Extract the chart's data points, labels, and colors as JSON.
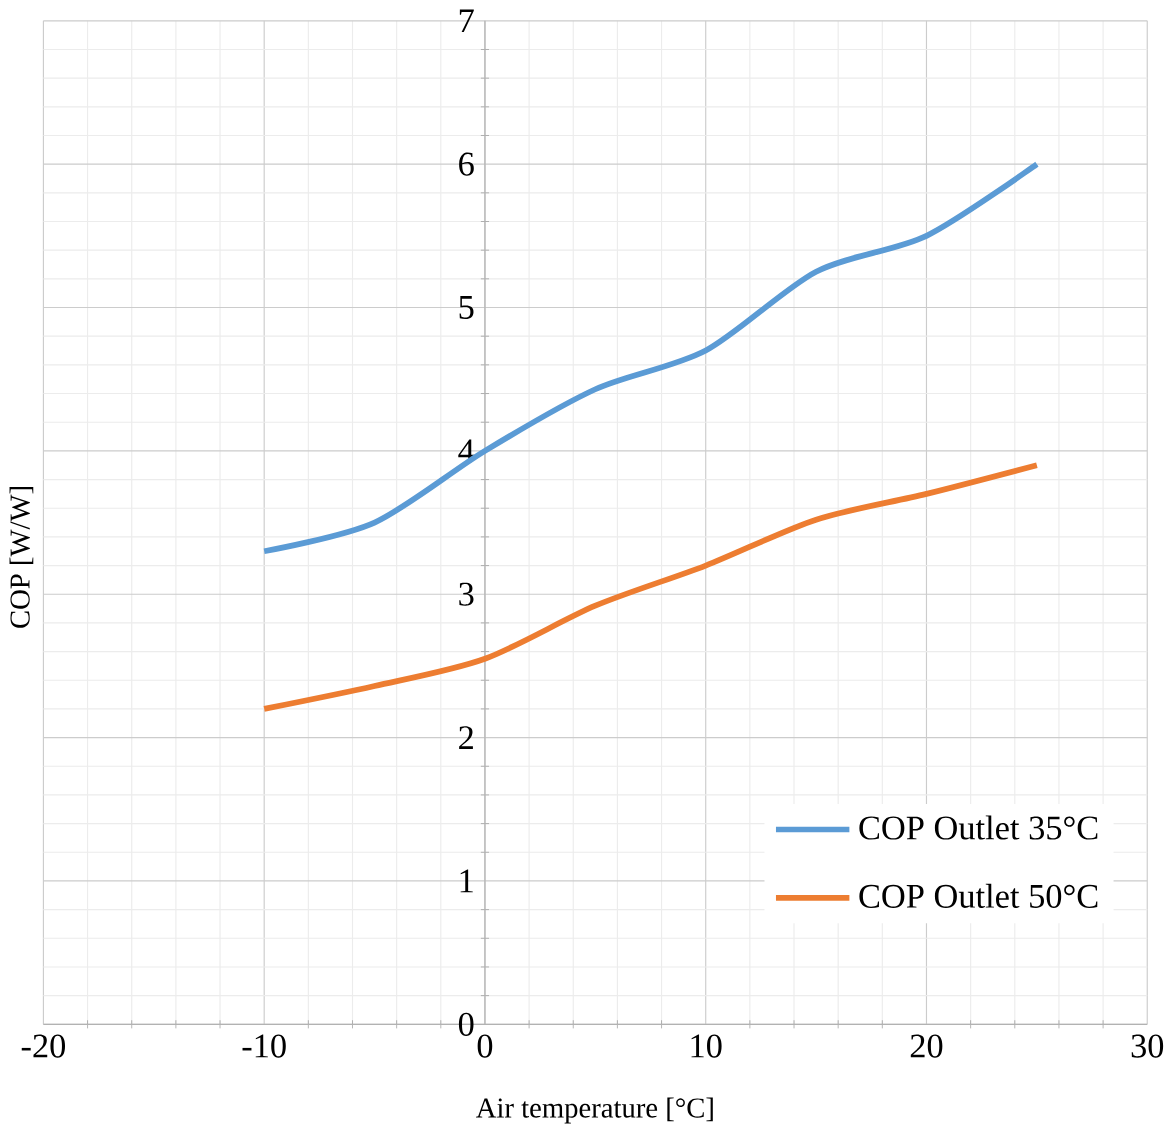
{
  "chart_data": {
    "type": "line",
    "xlabel": "Air temperature [°C]",
    "ylabel": "COP [W/W]",
    "x": [
      -10,
      -5,
      0,
      5,
      10,
      15,
      20,
      25
    ],
    "series": [
      {
        "name": "COP Outlet 35°C",
        "color": "#5b9bd5",
        "values": [
          3.3,
          3.5,
          4.0,
          4.43,
          4.7,
          5.25,
          5.5,
          6.0
        ]
      },
      {
        "name": "COP Outlet 50°C",
        "color": "#ed7d31",
        "values": [
          2.2,
          2.36,
          2.55,
          2.92,
          3.2,
          3.52,
          3.7,
          3.9
        ]
      }
    ],
    "xlim": [
      -20,
      30
    ],
    "ylim": [
      0,
      7
    ],
    "xticks": [
      -20,
      -10,
      0,
      10,
      20,
      30
    ],
    "yticks": [
      0,
      1,
      2,
      3,
      4,
      5,
      6,
      7
    ],
    "grid": true,
    "legend": "bottom right",
    "marker": "none",
    "line_style": "solid"
  }
}
